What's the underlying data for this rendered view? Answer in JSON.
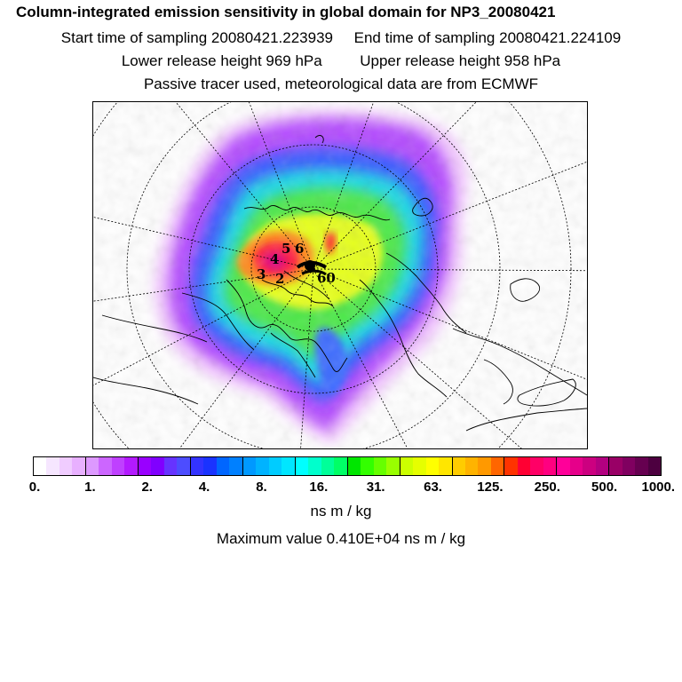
{
  "header": {
    "title": "Column-integrated emission sensitivity in global domain for NP3_20080421",
    "start_time": "Start time of sampling 20080421.223939",
    "end_time": "End time of sampling 20080421.224109",
    "lower_release": "Lower release height  969 hPa",
    "upper_release": "Upper release height  958 hPa",
    "tracer_note": "Passive tracer used, meteorological data are from ECMWF"
  },
  "map": {
    "projection": "polar stereographic (north)",
    "marker_labels": [
      "5",
      "6",
      "4",
      "3",
      "2",
      "60"
    ]
  },
  "colorbar": {
    "colors": [
      "#ffffff",
      "#f6e6ff",
      "#f0ccff",
      "#e8b0ff",
      "#dd99ff",
      "#cc66ff",
      "#bf40ff",
      "#b31aff",
      "#9900ff",
      "#8000ff",
      "#6633ff",
      "#4d4dff",
      "#3333ff",
      "#1a33ff",
      "#0066ff",
      "#0080ff",
      "#0099ff",
      "#00b3ff",
      "#00ccff",
      "#00e6ff",
      "#00ffff",
      "#00ffcc",
      "#00ff99",
      "#00ff66",
      "#00e600",
      "#33ff00",
      "#66ff00",
      "#99ff00",
      "#ccff00",
      "#e6ff00",
      "#ffff00",
      "#ffe600",
      "#ffcc00",
      "#ffb300",
      "#ff9900",
      "#ff6600",
      "#ff3300",
      "#ff0033",
      "#ff0066",
      "#ff0080",
      "#ff0099",
      "#e6008a",
      "#cc0080",
      "#b30080",
      "#990066",
      "#800060",
      "#660050",
      "#4d0040"
    ],
    "tick_labels": [
      "0.",
      "1.",
      "2.",
      "4.",
      "8.",
      "16.",
      "31.",
      "63.",
      "125.",
      "250.",
      "500.",
      "1000."
    ]
  },
  "units": "ns m / kg",
  "maximum": "Maximum value  0.410E+04 ns m / kg"
}
